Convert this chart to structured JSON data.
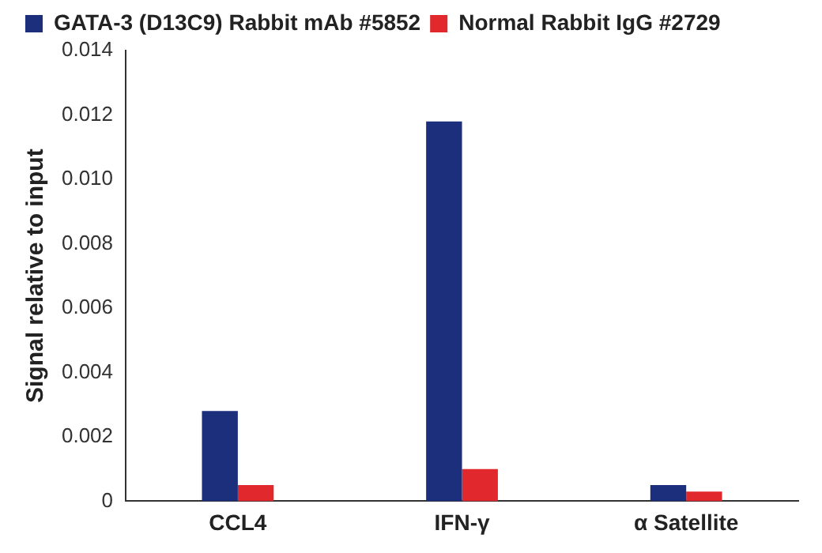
{
  "chart_data": {
    "type": "bar",
    "ylabel": "Signal relative to input",
    "categories": [
      "CCL4",
      "IFN-γ",
      "α Satellite"
    ],
    "series": [
      {
        "name": "GATA-3 (D13C9) Rabbit mAb #5852",
        "color": "#1b2f7c",
        "values": [
          0.0028,
          0.0118,
          0.0005
        ]
      },
      {
        "name": "Normal Rabbit IgG #2729",
        "color": "#e0282d",
        "values": [
          0.0005,
          0.001,
          0.0003
        ]
      }
    ],
    "ylim": [
      0,
      0.014
    ],
    "yticks": [
      {
        "value": 0,
        "label": "0"
      },
      {
        "value": 0.002,
        "label": "0.002"
      },
      {
        "value": 0.004,
        "label": "0.004"
      },
      {
        "value": 0.006,
        "label": "0.006"
      },
      {
        "value": 0.008,
        "label": "0.008"
      },
      {
        "value": 0.01,
        "label": "0.010"
      },
      {
        "value": 0.012,
        "label": "0.012"
      },
      {
        "value": 0.014,
        "label": "0.014"
      }
    ],
    "grid": false,
    "legend": "top left"
  }
}
